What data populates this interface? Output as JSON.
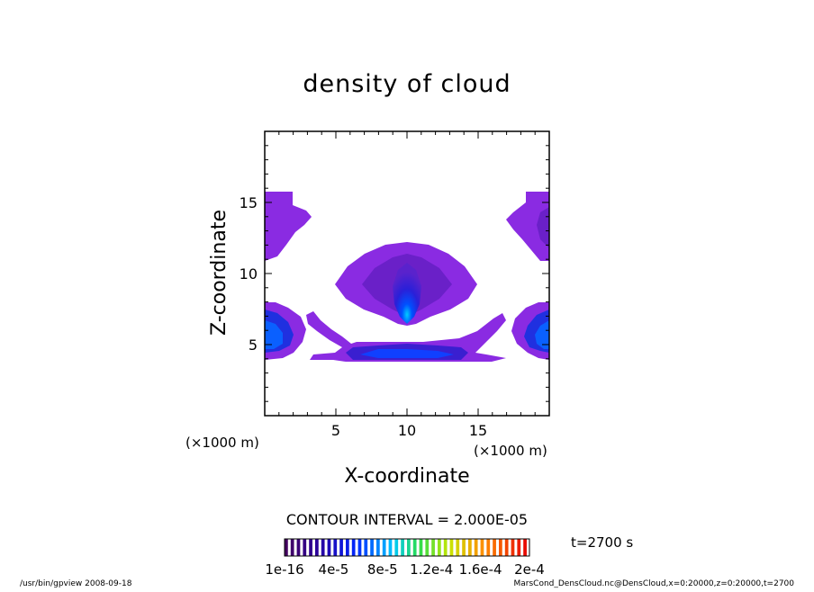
{
  "chart_data": {
    "type": "heatmap",
    "title": "density of cloud",
    "xlabel": "X-coordinate",
    "ylabel": "Z-coordinate",
    "x_unit": "(×1000 m)",
    "z_unit": "(×1000 m)",
    "xlim": [
      0,
      20
    ],
    "ylim": [
      0,
      20
    ],
    "x_ticks": [
      5,
      10,
      15
    ],
    "y_ticks": [
      5,
      10,
      15
    ],
    "contour_interval_text": "CONTOUR INTERVAL = 2.000E-05",
    "time_text": "t=2700 s",
    "colorbar_labels": [
      "1e-16",
      "4e-5",
      "8e-5",
      "1.2e-4",
      "1.6e-4",
      "2e-4"
    ],
    "colorbar_range": [
      1e-16,
      0.0002
    ],
    "colorbar_segments": 40,
    "footer_left": "/usr/bin/gpview  2008-09-18",
    "footer_right": "MarsCond_DensCloud.nc@DensCloud,x=0:20000,z=0:20000,t=2700",
    "colors": {
      "cloud_base": "#8a2be2",
      "cloud_mid": "#6a20c8",
      "cloud_deep": "#3a1fd0",
      "cloud_core": "#1040ff",
      "cloud_peak": "#00aaff"
    }
  }
}
